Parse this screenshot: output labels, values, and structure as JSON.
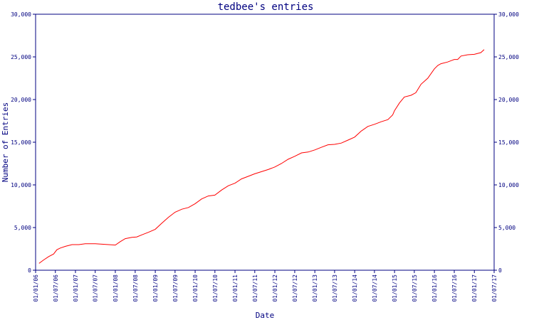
{
  "colors": {
    "axis": "#000080",
    "text": "#000080",
    "series": "#ff0000",
    "background": "#ffffff"
  },
  "chart_data": {
    "type": "line",
    "title": "tedbee's entries",
    "xlabel": "Date",
    "ylabel": "Number of Entries",
    "grid": false,
    "legend": "none",
    "xlim": [
      "2006-01-01",
      "2017-07-01"
    ],
    "ylim": [
      0,
      30000
    ],
    "x_ticks": [
      "01/01/06",
      "01/07/06",
      "01/01/07",
      "01/07/07",
      "01/01/08",
      "01/07/08",
      "01/01/09",
      "01/07/09",
      "01/01/10",
      "01/07/10",
      "01/01/11",
      "01/07/11",
      "01/01/12",
      "01/07/12",
      "01/01/13",
      "01/07/13",
      "01/01/14",
      "01/07/14",
      "01/01/15",
      "01/07/15",
      "01/01/16",
      "01/07/16",
      "01/01/17",
      "01/07/17"
    ],
    "y_ticks": [
      "0",
      "5,000",
      "10,000",
      "15,000",
      "20,000",
      "25,000",
      "30,000"
    ],
    "series": [
      {
        "x": [
          "2006-02-01",
          "2006-03-15",
          "2006-05-01",
          "2006-06-15",
          "2006-07-15",
          "2006-08-15",
          "2006-10-01",
          "2006-12-01",
          "2007-02-01",
          "2007-04-01",
          "2007-06-01",
          "2007-07-01",
          "2007-09-01",
          "2007-11-01",
          "2008-01-01",
          "2008-02-15",
          "2008-04-01",
          "2008-06-01",
          "2008-07-15",
          "2008-09-01",
          "2008-11-01",
          "2009-01-01",
          "2009-03-01",
          "2009-05-01",
          "2009-07-01",
          "2009-09-01",
          "2009-11-01",
          "2010-01-01",
          "2010-03-01",
          "2010-05-01",
          "2010-07-01",
          "2010-09-01",
          "2010-11-01",
          "2011-01-01",
          "2011-03-01",
          "2011-05-01",
          "2011-07-01",
          "2011-09-01",
          "2011-11-01",
          "2012-01-01",
          "2012-03-01",
          "2012-05-01",
          "2012-07-01",
          "2012-09-01",
          "2012-11-01",
          "2013-01-01",
          "2013-03-01",
          "2013-05-01",
          "2013-07-01",
          "2013-09-01",
          "2013-11-01",
          "2014-01-01",
          "2014-03-01",
          "2014-05-01",
          "2014-07-01",
          "2014-09-01",
          "2014-11-01",
          "2014-12-15",
          "2015-01-01",
          "2015-02-15",
          "2015-04-01",
          "2015-06-01",
          "2015-07-15",
          "2015-09-01",
          "2015-11-01",
          "2016-01-01",
          "2016-02-01",
          "2016-03-01",
          "2016-05-01",
          "2016-07-01",
          "2016-08-01",
          "2016-09-01",
          "2016-11-01",
          "2017-01-01",
          "2017-03-01",
          "2017-04-01"
        ],
        "values": [
          800,
          1200,
          1600,
          1900,
          2400,
          2600,
          2800,
          3000,
          3000,
          3100,
          3100,
          3100,
          3050,
          3000,
          2950,
          3350,
          3700,
          3850,
          3900,
          4150,
          4450,
          4800,
          5500,
          6200,
          6800,
          7150,
          7350,
          7800,
          8350,
          8700,
          8800,
          9400,
          9900,
          10200,
          10700,
          11000,
          11300,
          11550,
          11800,
          12100,
          12500,
          13000,
          13350,
          13750,
          13850,
          14100,
          14400,
          14700,
          14750,
          14900,
          15250,
          15600,
          16300,
          16850,
          17100,
          17400,
          17650,
          18200,
          18700,
          19600,
          20300,
          20500,
          20800,
          21800,
          22500,
          23600,
          24000,
          24200,
          24400,
          24700,
          24700,
          25100,
          25250,
          25300,
          25500,
          25850
        ]
      }
    ]
  }
}
